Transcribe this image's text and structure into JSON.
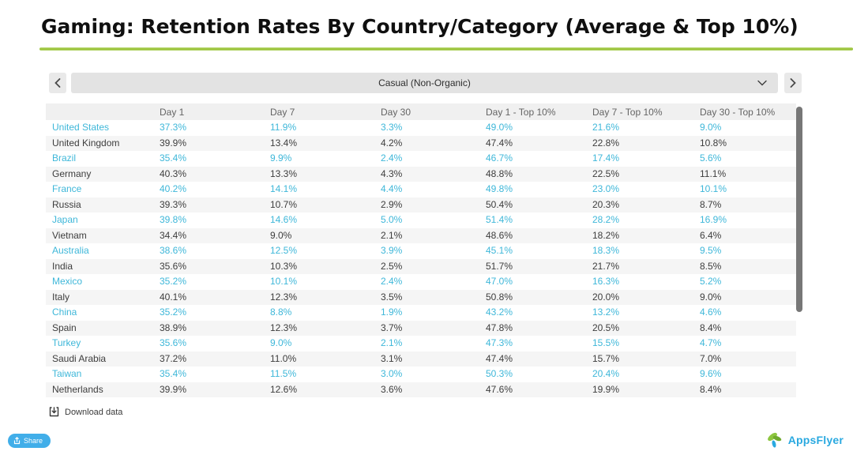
{
  "title": "Gaming: Retention Rates By Country/Category (Average & Top 10%)",
  "carousel": {
    "selected_category": "Casual (Non-Organic)"
  },
  "chart_data": {
    "type": "table",
    "title": "Gaming: Retention Rates By Country/Category (Average & Top 10%)",
    "selected_category": "Casual (Non-Organic)",
    "columns": [
      "",
      "Day 1",
      "Day 7",
      "Day 30",
      "Day 1 - Top 10%",
      "Day 7 - Top 10%",
      "Day 30 - Top 10%"
    ],
    "rows": [
      {
        "country": "United States",
        "values": [
          "37.3%",
          "11.9%",
          "3.3%",
          "49.0%",
          "21.6%",
          "9.0%"
        ],
        "highlighted": true
      },
      {
        "country": "United Kingdom",
        "values": [
          "39.9%",
          "13.4%",
          "4.2%",
          "47.4%",
          "22.8%",
          "10.8%"
        ],
        "highlighted": false
      },
      {
        "country": "Brazil",
        "values": [
          "35.4%",
          "9.9%",
          "2.4%",
          "46.7%",
          "17.4%",
          "5.6%"
        ],
        "highlighted": true
      },
      {
        "country": "Germany",
        "values": [
          "40.3%",
          "13.3%",
          "4.3%",
          "48.8%",
          "22.5%",
          "11.1%"
        ],
        "highlighted": false
      },
      {
        "country": "France",
        "values": [
          "40.2%",
          "14.1%",
          "4.4%",
          "49.8%",
          "23.0%",
          "10.1%"
        ],
        "highlighted": true
      },
      {
        "country": "Russia",
        "values": [
          "39.3%",
          "10.7%",
          "2.9%",
          "50.4%",
          "20.3%",
          "8.7%"
        ],
        "highlighted": false
      },
      {
        "country": "Japan",
        "values": [
          "39.8%",
          "14.6%",
          "5.0%",
          "51.4%",
          "28.2%",
          "16.9%"
        ],
        "highlighted": true
      },
      {
        "country": "Vietnam",
        "values": [
          "34.4%",
          "9.0%",
          "2.1%",
          "48.6%",
          "18.2%",
          "6.4%"
        ],
        "highlighted": false
      },
      {
        "country": "Australia",
        "values": [
          "38.6%",
          "12.5%",
          "3.9%",
          "45.1%",
          "18.3%",
          "9.5%"
        ],
        "highlighted": true
      },
      {
        "country": "India",
        "values": [
          "35.6%",
          "10.3%",
          "2.5%",
          "51.7%",
          "21.7%",
          "8.5%"
        ],
        "highlighted": false
      },
      {
        "country": "Mexico",
        "values": [
          "35.2%",
          "10.1%",
          "2.4%",
          "47.0%",
          "16.3%",
          "5.2%"
        ],
        "highlighted": true
      },
      {
        "country": "Italy",
        "values": [
          "40.1%",
          "12.3%",
          "3.5%",
          "50.8%",
          "20.0%",
          "9.0%"
        ],
        "highlighted": false
      },
      {
        "country": "China",
        "values": [
          "35.2%",
          "8.8%",
          "1.9%",
          "43.2%",
          "13.2%",
          "4.6%"
        ],
        "highlighted": true
      },
      {
        "country": "Spain",
        "values": [
          "38.9%",
          "12.3%",
          "3.7%",
          "47.8%",
          "20.5%",
          "8.4%"
        ],
        "highlighted": false
      },
      {
        "country": "Turkey",
        "values": [
          "35.6%",
          "9.0%",
          "2.1%",
          "47.3%",
          "15.5%",
          "4.7%"
        ],
        "highlighted": true
      },
      {
        "country": "Saudi Arabia",
        "values": [
          "37.2%",
          "11.0%",
          "3.1%",
          "47.4%",
          "15.7%",
          "7.0%"
        ],
        "highlighted": false
      },
      {
        "country": "Taiwan",
        "values": [
          "35.4%",
          "11.5%",
          "3.0%",
          "50.3%",
          "20.4%",
          "9.6%"
        ],
        "highlighted": true
      },
      {
        "country": "Netherlands",
        "values": [
          "39.9%",
          "12.6%",
          "3.6%",
          "47.6%",
          "19.9%",
          "8.4%"
        ],
        "highlighted": false
      }
    ]
  },
  "footer": {
    "download_label": "Download data",
    "share_label": "Share"
  },
  "logo": {
    "text": "AppsFlyer"
  },
  "colors": {
    "accent_green": "#9cc43d",
    "highlight_blue": "#3eb7d9",
    "share_button_blue": "#41aee9",
    "logo_blue": "#2aa9e0",
    "logo_green": "#8dc63f",
    "row_alt_gray": "#f5f5f5",
    "header_gray": "#f0f0f0"
  }
}
